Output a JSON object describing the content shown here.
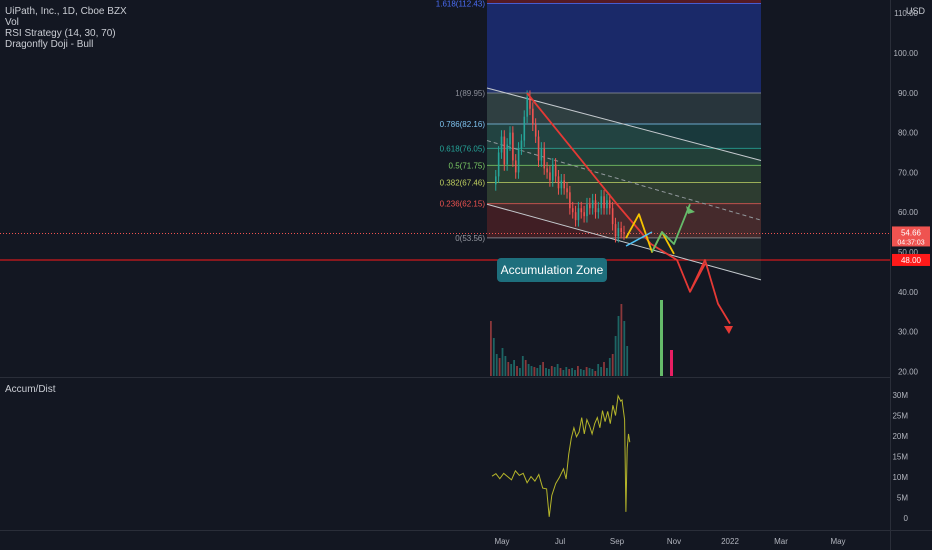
{
  "legend": {
    "symbol": "UiPath, Inc., 1D, Cboe BZX",
    "vol": "Vol",
    "strategy": "RSI Strategy (14, 30, 70)",
    "pattern": "Dragonfly Doji - Bull"
  },
  "currency": "USD",
  "indicator_label": "Accum/Dist",
  "annotation": "Accumulation Zone",
  "price_badges": {
    "last": "54.66",
    "countdown": "04:37:03",
    "level": "48.00"
  },
  "colors": {
    "background": "#131722",
    "candle_up": "#26a69a",
    "candle_down": "#ef5350",
    "drawing_red": "#e53935",
    "drawing_yellow": "#f5c400",
    "drawing_green": "#66bb6a",
    "ad_line": "#b5b52a",
    "fib_band_top": "#1a2a6e",
    "fib_band_red": "#6b1f22"
  },
  "chart_data": [
    {
      "type": "line",
      "title": "UiPath, Inc., 1D, Cboe BZX",
      "ylabel": "USD",
      "ylim": [
        20,
        117
      ],
      "y_ticks": [
        20,
        30,
        40,
        50,
        60,
        70,
        80,
        90,
        100,
        110
      ],
      "y_tick_labels": [
        "20.00",
        "30.00",
        "40.00",
        "50.00",
        "60.00",
        "70.00",
        "80.00",
        "90.00",
        "100.00",
        "110.00"
      ],
      "x_ticks": [
        "May",
        "Jul",
        "Sep",
        "Nov",
        "2022",
        "Mar",
        "May"
      ],
      "fib_levels": [
        {
          "ratio": "1.618",
          "price": 112.43,
          "label": "1.618(112.43)"
        },
        {
          "ratio": "1",
          "price": 89.95,
          "label": "1(89.95)"
        },
        {
          "ratio": "0.786",
          "price": 82.16,
          "label": "0.786(82.16)"
        },
        {
          "ratio": "0.618",
          "price": 76.05,
          "label": "0.618(76.05)"
        },
        {
          "ratio": "0.5",
          "price": 71.75,
          "label": "0.5(71.75)"
        },
        {
          "ratio": "0.382",
          "price": 67.46,
          "label": "0.382(67.46)"
        },
        {
          "ratio": "0.236",
          "price": 62.15,
          "label": "0.236(62.15)"
        },
        {
          "ratio": "0",
          "price": 53.56,
          "label": "0(53.56)"
        }
      ],
      "horizontal_lines": {
        "last_price": 54.66,
        "support": 48.0
      },
      "price_series": [
        {
          "t": "May",
          "close": 69
        },
        {
          "t": "May",
          "close": 75
        },
        {
          "t": "May",
          "close": 79
        },
        {
          "t": "May",
          "close": 72
        },
        {
          "t": "May",
          "close": 77
        },
        {
          "t": "May",
          "close": 80
        },
        {
          "t": "May",
          "close": 73
        },
        {
          "t": "May",
          "close": 70
        },
        {
          "t": "May",
          "close": 76
        },
        {
          "t": "May",
          "close": 78
        },
        {
          "t": "May",
          "close": 84
        },
        {
          "t": "May",
          "close": 89
        },
        {
          "t": "May",
          "close": 86
        },
        {
          "t": "Jun",
          "close": 82
        },
        {
          "t": "Jun",
          "close": 79
        },
        {
          "t": "Jun",
          "close": 73
        },
        {
          "t": "Jun",
          "close": 76
        },
        {
          "t": "Jun",
          "close": 71
        },
        {
          "t": "Jun",
          "close": 70
        },
        {
          "t": "Jun",
          "close": 68
        },
        {
          "t": "Jun",
          "close": 72
        },
        {
          "t": "Jun",
          "close": 69
        },
        {
          "t": "Jun",
          "close": 66
        },
        {
          "t": "Jun",
          "close": 68
        },
        {
          "t": "Jul",
          "close": 66
        },
        {
          "t": "Jul",
          "close": 65
        },
        {
          "t": "Jul",
          "close": 61
        },
        {
          "t": "Jul",
          "close": 60
        },
        {
          "t": "Jul",
          "close": 58
        },
        {
          "t": "Jul",
          "close": 61
        },
        {
          "t": "Jul",
          "close": 60
        },
        {
          "t": "Jul",
          "close": 59
        },
        {
          "t": "Aug",
          "close": 62
        },
        {
          "t": "Aug",
          "close": 61
        },
        {
          "t": "Aug",
          "close": 63
        },
        {
          "t": "Aug",
          "close": 60
        },
        {
          "t": "Aug",
          "close": 61
        },
        {
          "t": "Aug",
          "close": 64
        },
        {
          "t": "Aug",
          "close": 61
        },
        {
          "t": "Aug",
          "close": 63
        },
        {
          "t": "Sep",
          "close": 61
        },
        {
          "t": "Sep",
          "close": 57
        },
        {
          "t": "Sep",
          "close": 54
        },
        {
          "t": "Sep",
          "close": 56
        },
        {
          "t": "Sep",
          "close": 55
        },
        {
          "t": "Sep",
          "close": 54.66
        }
      ],
      "projections": {
        "red_downtrend": [
          [
            "May",
            89.95
          ],
          [
            "Sep",
            61
          ],
          [
            "Oct",
            52
          ],
          [
            "Nov",
            48
          ],
          [
            "Nov",
            40
          ],
          [
            "Dec",
            47
          ],
          [
            "Dec",
            35
          ],
          [
            "Jan",
            43
          ],
          [
            "Jan",
            31
          ]
        ],
        "yellow_path": [
          [
            "Sep",
            53.5
          ],
          [
            "Sep",
            59.5
          ],
          [
            "Oct",
            50
          ],
          [
            "Oct",
            55
          ],
          [
            "Oct",
            49.5
          ]
        ],
        "green_path": [
          [
            "Oct",
            50
          ],
          [
            "Oct",
            55
          ],
          [
            "Nov",
            52
          ],
          [
            "Nov",
            62
          ]
        ]
      },
      "volume_note": "volume histogram along bottom of price pane"
    },
    {
      "type": "line",
      "title": "Accum/Dist",
      "ylim": [
        -2000000,
        31000000
      ],
      "y_ticks": [
        0,
        5000000,
        10000000,
        15000000,
        20000000,
        25000000,
        30000000
      ],
      "y_tick_labels": [
        "0",
        "5M",
        "10M",
        "15M",
        "20M",
        "25M",
        "30M"
      ],
      "series": [
        {
          "values": [
            [
              0,
              10.2
            ],
            [
              3,
              10.8
            ],
            [
              6,
              9.6
            ],
            [
              9,
              10.9
            ],
            [
              12,
              10.1
            ],
            [
              15,
              9.3
            ],
            [
              18,
              11.5
            ],
            [
              21,
              10.4
            ],
            [
              24,
              10.9
            ],
            [
              27,
              8.6
            ],
            [
              30,
              10.1
            ],
            [
              33,
              9.0
            ],
            [
              36,
              10.6
            ],
            [
              39,
              7.3
            ],
            [
              42,
              7.1
            ],
            [
              44,
              0.3
            ],
            [
              46,
              5.5
            ],
            [
              49,
              8.4
            ],
            [
              52,
              10.0
            ],
            [
              55,
              12.0
            ],
            [
              57,
              9.5
            ],
            [
              59,
              15.5
            ],
            [
              61,
              19.5
            ],
            [
              63,
              22.0
            ],
            [
              65,
              19.8
            ],
            [
              67,
              21.0
            ],
            [
              69,
              24.5
            ],
            [
              71,
              20.5
            ],
            [
              73,
              24.0
            ],
            [
              75,
              22.5
            ],
            [
              77,
              20.5
            ],
            [
              79,
              23.0
            ],
            [
              81,
              24.5
            ],
            [
              83,
              22.0
            ],
            [
              85,
              26.2
            ],
            [
              87,
              23.5
            ],
            [
              89,
              26.0
            ],
            [
              91,
              23.0
            ],
            [
              93,
              27.5
            ],
            [
              95,
              25.0
            ],
            [
              97,
              29.8
            ],
            [
              99,
              28.5
            ],
            [
              100,
              28.8
            ],
            [
              102,
              24.0
            ],
            [
              103,
              1.5
            ],
            [
              104,
              17.0
            ],
            [
              105,
              20.5
            ],
            [
              106,
              18.5
            ]
          ]
        }
      ]
    }
  ]
}
